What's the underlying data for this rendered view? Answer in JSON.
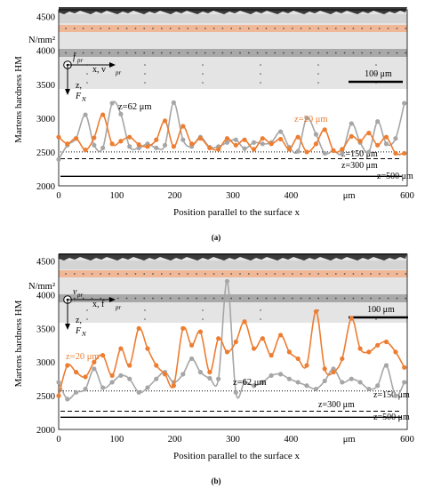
{
  "figure": {
    "colors": {
      "orange": "#ed7d31",
      "gray": "#a6a6a6",
      "orange_band": "#f2b08a",
      "gray_band": "#9a9a9a",
      "line": "#000000",
      "micro_bg": "#d9d9d9"
    }
  },
  "chart_data": [
    {
      "type": "line",
      "panel_label": "(a)",
      "ylabel": "Martens hardness HM",
      "yunit": "N/mm²",
      "xlabel": "Position parallel  to the surface x",
      "xunit": "μm",
      "xlim": [
        0,
        600
      ],
      "ylim": [
        2000,
        4600
      ],
      "yticks": [
        2000,
        2500,
        3000,
        3500,
        4000,
        4500
      ],
      "xticks": [
        0,
        100,
        200,
        300,
        400,
        500,
        600
      ],
      "scale_bar": "100 μm",
      "axis_labels": {
        "primary_top": "f",
        "primary_top_sub": "pr",
        "primary_mid": "x, v",
        "primary_mid_sub": "pr",
        "primary_bottom": "z,",
        "primary_bottom2": "F",
        "primary_bottom2_sub": "N"
      },
      "series": [
        {
          "name": "z=20 μm",
          "color": "#ed7d31",
          "x": [
            0,
            15,
            30,
            46,
            61,
            76,
            92,
            107,
            122,
            138,
            153,
            168,
            183,
            198,
            214,
            229,
            244,
            260,
            275,
            290,
            305,
            320,
            336,
            351,
            366,
            382,
            397,
            412,
            427,
            443,
            458,
            473,
            488,
            504,
            519,
            534,
            549,
            564,
            580,
            595
          ],
          "y": [
            2720,
            2620,
            2700,
            2530,
            2710,
            3050,
            2620,
            2660,
            2720,
            2610,
            2580,
            2680,
            2960,
            2580,
            2880,
            2620,
            2700,
            2560,
            2540,
            2700,
            2600,
            2680,
            2540,
            2700,
            2620,
            2690,
            2540,
            2720,
            2500,
            2620,
            2830,
            2520,
            2540,
            2730,
            2660,
            2780,
            2600,
            2720,
            2480,
            2480
          ]
        },
        {
          "name": "z=62 μm",
          "color": "#a6a6a6",
          "x": [
            0,
            15,
            30,
            46,
            61,
            76,
            92,
            107,
            122,
            138,
            153,
            168,
            183,
            198,
            214,
            229,
            244,
            260,
            275,
            290,
            305,
            320,
            336,
            351,
            366,
            382,
            397,
            412,
            427,
            443,
            458,
            473,
            488,
            504,
            519,
            534,
            549,
            564,
            580,
            595
          ],
          "y": [
            2390,
            2600,
            2700,
            3050,
            2600,
            2560,
            3220,
            3060,
            2580,
            2560,
            2620,
            2560,
            2600,
            3230,
            2680,
            2580,
            2720,
            2570,
            2580,
            2640,
            2680,
            2550,
            2640,
            2620,
            2640,
            2800,
            2570,
            2510,
            3000,
            2760,
            2480,
            2520,
            2480,
            2920,
            2640,
            2500,
            2950,
            2620,
            2700,
            3220
          ]
        }
      ],
      "reference_lines": [
        {
          "label": "z=150 μm",
          "y": 2500,
          "style": "dotted"
        },
        {
          "label": "z=300 μm",
          "y": 2400,
          "style": "dashed"
        },
        {
          "label": "z=500 μm",
          "y": 2140,
          "style": "solid"
        }
      ]
    },
    {
      "type": "line",
      "panel_label": "(b)",
      "ylabel": "Martens hardness HM",
      "yunit": "N/mm²",
      "xlabel": "Position parallel  to the surface x",
      "xunit": "μm",
      "xlim": [
        0,
        600
      ],
      "ylim": [
        2000,
        4600
      ],
      "yticks": [
        2000,
        2500,
        3000,
        3500,
        4000,
        4500
      ],
      "xticks": [
        0,
        100,
        200,
        300,
        400,
        500,
        600
      ],
      "scale_bar": "100 μm",
      "axis_labels": {
        "primary_top": "v",
        "primary_top_sub": "pr",
        "primary_mid": "x, f",
        "primary_mid_sub": "pr",
        "primary_bottom": "z,",
        "primary_bottom2": "F",
        "primary_bottom2_sub": "N"
      },
      "series": [
        {
          "name": "z=20 μm",
          "color": "#ed7d31",
          "x": [
            0,
            15,
            30,
            46,
            61,
            76,
            92,
            107,
            122,
            138,
            153,
            168,
            183,
            198,
            214,
            229,
            244,
            260,
            275,
            290,
            305,
            320,
            336,
            351,
            366,
            382,
            397,
            412,
            427,
            443,
            458,
            473,
            488,
            504,
            519,
            534,
            549,
            564,
            580,
            595
          ],
          "y": [
            2500,
            2950,
            2850,
            2780,
            3000,
            3100,
            2800,
            3200,
            2950,
            3500,
            3200,
            2950,
            2820,
            2650,
            3500,
            3250,
            3450,
            2850,
            3350,
            3150,
            3300,
            3600,
            3200,
            3350,
            3100,
            3400,
            3150,
            3050,
            2950,
            3750,
            2900,
            2850,
            3050,
            3650,
            3200,
            3150,
            3250,
            3300,
            3150,
            2920
          ]
        },
        {
          "name": "z=62 μm",
          "color": "#a6a6a6",
          "x": [
            0,
            15,
            30,
            46,
            61,
            76,
            92,
            107,
            122,
            138,
            153,
            168,
            183,
            198,
            214,
            229,
            244,
            260,
            275,
            290,
            305,
            320,
            336,
            351,
            366,
            382,
            397,
            412,
            427,
            443,
            458,
            473,
            488,
            504,
            519,
            534,
            549,
            564,
            580,
            595
          ],
          "y": [
            2700,
            2450,
            2550,
            2600,
            2900,
            2620,
            2700,
            2800,
            2750,
            2550,
            2620,
            2750,
            2850,
            2700,
            2820,
            3050,
            2850,
            2760,
            2750,
            4200,
            2550,
            2700,
            2650,
            2700,
            2800,
            2820,
            2750,
            2700,
            2650,
            2600,
            2720,
            2900,
            2700,
            2750,
            2700,
            2600,
            2650,
            2950,
            2500,
            2700
          ]
        }
      ],
      "reference_lines": [
        {
          "label": "z=150 μm",
          "y": 2570,
          "style": "dotted"
        },
        {
          "label": "z=300 μm",
          "y": 2270,
          "style": "dashed"
        },
        {
          "label": "z=500 μm",
          "y": 2180,
          "style": "solid"
        }
      ]
    }
  ]
}
